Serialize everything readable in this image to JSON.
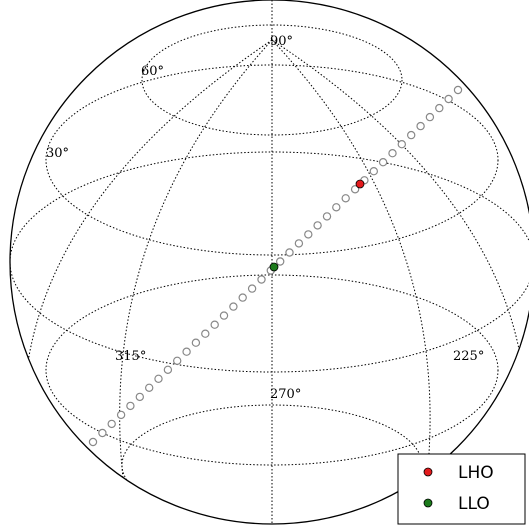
{
  "chart_data": {
    "type": "scatter",
    "projection": "orthographic-globe",
    "grid": true,
    "latitude_ticks": [
      "90°",
      "60°",
      "30°"
    ],
    "longitude_ticks": [
      "315°",
      "270°",
      "225°"
    ],
    "track": {
      "marker": "hollow-circle",
      "color": "#888888",
      "points": 40
    },
    "series": [
      {
        "name": "LHO",
        "color": "#e31a1c"
      },
      {
        "name": "LLO",
        "color": "#1b7a1b"
      }
    ],
    "legend": {
      "position": "bottom-right"
    }
  }
}
